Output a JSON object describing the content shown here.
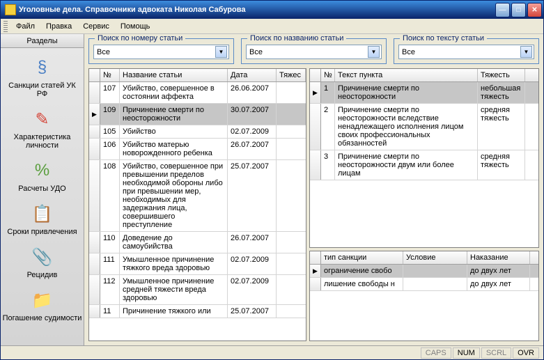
{
  "window": {
    "title": "Уголовные дела. Справочники адвоката Николая Сабурова"
  },
  "menu": [
    "Файл",
    "Правка",
    "Сервис",
    "Помощь"
  ],
  "sidebar": {
    "header": "Разделы",
    "items": [
      {
        "label": "Санкции статей УК РФ",
        "icon": "§",
        "color": "#4a7fc4"
      },
      {
        "label": "Характеристика личности",
        "icon": "✎",
        "color": "#d4463a"
      },
      {
        "label": "Расчеты УДО",
        "icon": "%",
        "color": "#5a9e3e"
      },
      {
        "label": "Сроки привлечения",
        "icon": "📋",
        "color": "#e8a33d"
      },
      {
        "label": "Рецидив",
        "icon": "📎",
        "color": "#4a7fc4"
      },
      {
        "label": "Погашение судимости",
        "icon": "📁",
        "color": "#e8a33d"
      }
    ]
  },
  "search": {
    "byNumber": {
      "legend": "Поиск по номеру статьи",
      "value": "Все"
    },
    "byName": {
      "legend": "Поиск по названию статьи",
      "value": "Все"
    },
    "byText": {
      "legend": "Поиск по тексту статьи",
      "value": "Все"
    }
  },
  "articlesGrid": {
    "columns": [
      "№",
      "Название статьи",
      "Дата",
      "Тяжес"
    ],
    "widths": [
      28,
      155,
      70,
      42
    ],
    "selectedRow": 1,
    "rows": [
      {
        "num": "107",
        "name": "Убийство, совершенное в состоянии аффекта",
        "date": "26.06.2007"
      },
      {
        "num": "109",
        "name": "Причинение смерти по неосторожности",
        "date": "30.07.2007"
      },
      {
        "num": "105",
        "name": "Убийство",
        "date": "02.07.2009"
      },
      {
        "num": "106",
        "name": "Убийство матерью новорожденного ребенка",
        "date": "26.07.2007"
      },
      {
        "num": "108",
        "name": "Убийство, совершенное при превышении пределов необходимой обороны либо при превышении мер, необходимых для задержания лица, совершившего преступление",
        "date": "25.07.2007"
      },
      {
        "num": "110",
        "name": "Доведение до самоубийства",
        "date": "26.07.2007"
      },
      {
        "num": "111",
        "name": "Умышленное причинение тяжкого вреда здоровью",
        "date": "02.07.2009"
      },
      {
        "num": "112",
        "name": "Умышленное причинение средней тяжести вреда здоровью",
        "date": "02.07.2009"
      },
      {
        "num": "11",
        "name": "Причинение тяжкого или",
        "date": "25.07.2007"
      }
    ]
  },
  "textsGrid": {
    "columns": [
      "№",
      "Текст пункта",
      "Тяжесть"
    ],
    "widths": [
      20,
      205,
      68
    ],
    "selectedRow": 0,
    "rows": [
      {
        "num": "1",
        "text": "Причинение смерти по неосторожности",
        "sev": "небольшая тяжесть"
      },
      {
        "num": "2",
        "text": "Причинение смерти по неосторожности вследствие ненадлежащего исполнения лицом своих профессиональных обязанностей",
        "sev": "средняя тяжесть"
      },
      {
        "num": "3",
        "text": "Причинение смерти по неосторожности двум или более лицам",
        "sev": "средняя тяжесть"
      }
    ]
  },
  "sanctionsGrid": {
    "columns": [
      "тип санкции",
      "Условие",
      "Наказание"
    ],
    "widths": [
      118,
      92,
      90
    ],
    "selectedRow": 0,
    "rows": [
      {
        "type": "ограничение свобо",
        "cond": "",
        "pun": "до двух лет"
      },
      {
        "type": "лишение свободы н",
        "cond": "",
        "pun": "до двух лет"
      }
    ]
  },
  "status": {
    "caps": "CAPS",
    "num": "NUM",
    "scrl": "SCRL",
    "ovr": "OVR"
  }
}
